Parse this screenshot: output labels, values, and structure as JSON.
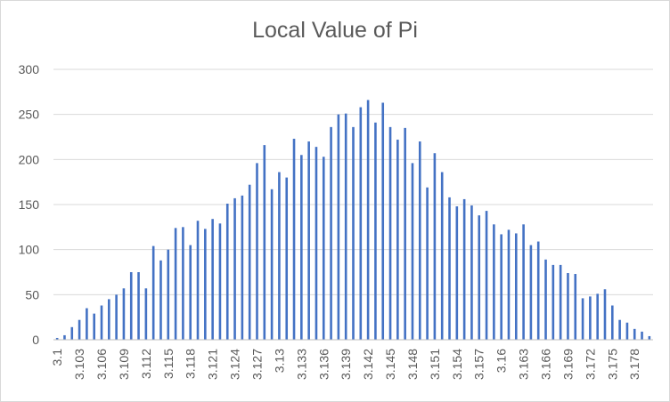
{
  "chart_data": {
    "type": "bar",
    "title": "Local Value of Pi",
    "xlabel": "",
    "ylabel": "",
    "ylim": [
      0,
      300
    ],
    "yticks": [
      0,
      50,
      100,
      150,
      200,
      250,
      300
    ],
    "grid": true,
    "legend": "none",
    "bar_color": "#4472c4",
    "grid_color": "#d9d9d9",
    "axis_color": "#bfbfbf",
    "text_color": "#595959",
    "x_start": 3.1,
    "x_step": 0.001,
    "tick_every": 3,
    "tick_labels": [
      "3.1",
      "3.103",
      "3.106",
      "3.109",
      "3.112",
      "3.115",
      "3.118",
      "3.121",
      "3.124",
      "3.127",
      "3.13",
      "3.133",
      "3.136",
      "3.139",
      "3.142",
      "3.145",
      "3.148",
      "3.151",
      "3.154",
      "3.157",
      "3.16",
      "3.163",
      "3.166",
      "3.169",
      "3.172",
      "3.175",
      "3.178"
    ],
    "values": [
      2,
      5,
      14,
      22,
      35,
      29,
      38,
      45,
      50,
      57,
      75,
      75,
      57,
      104,
      88,
      100,
      124,
      125,
      105,
      132,
      123,
      134,
      129,
      151,
      157,
      160,
      172,
      196,
      216,
      167,
      186,
      180,
      223,
      205,
      220,
      214,
      203,
      236,
      250,
      251,
      236,
      258,
      266,
      241,
      263,
      236,
      222,
      235,
      196,
      220,
      169,
      207,
      186,
      158,
      148,
      156,
      149,
      138,
      143,
      128,
      117,
      122,
      118,
      128,
      105,
      109,
      89,
      83,
      83,
      74,
      73,
      46,
      48,
      51,
      56,
      38,
      22,
      19,
      12,
      9,
      4
    ]
  }
}
